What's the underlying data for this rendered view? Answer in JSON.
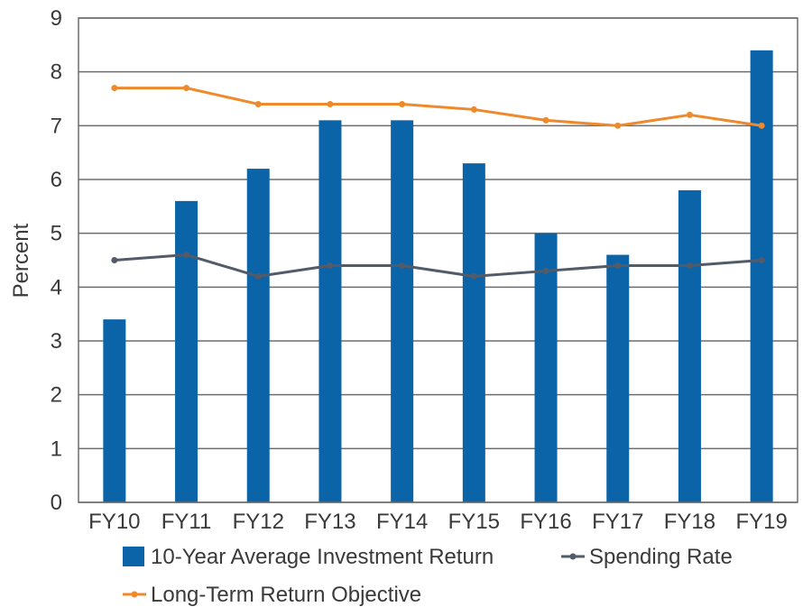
{
  "chart_data": {
    "type": "bar",
    "title": "",
    "xlabel": "",
    "ylabel": "Percent",
    "ylim": [
      0,
      9
    ],
    "yticks": [
      0,
      1,
      2,
      3,
      4,
      5,
      6,
      7,
      8,
      9
    ],
    "grid": true,
    "legend_position": "bottom",
    "categories": [
      "FY10",
      "FY11",
      "FY12",
      "FY13",
      "FY14",
      "FY15",
      "FY16",
      "FY17",
      "FY18",
      "FY19"
    ],
    "series": [
      {
        "name": "10-Year Average Investment Return",
        "type": "bar",
        "color": "#0b64a8",
        "values": [
          3.4,
          5.6,
          6.2,
          7.1,
          7.1,
          6.3,
          5.0,
          4.6,
          5.8,
          8.4
        ]
      },
      {
        "name": "Spending Rate",
        "type": "line",
        "color": "#525b69",
        "values": [
          4.5,
          4.6,
          4.2,
          4.4,
          4.4,
          4.2,
          4.3,
          4.4,
          4.4,
          4.5
        ]
      },
      {
        "name": "Long-Term Return Objective",
        "type": "line",
        "color": "#ef8a2c",
        "values": [
          7.7,
          7.7,
          7.4,
          7.4,
          7.4,
          7.3,
          7.1,
          7.0,
          7.2,
          7.0
        ]
      }
    ]
  }
}
